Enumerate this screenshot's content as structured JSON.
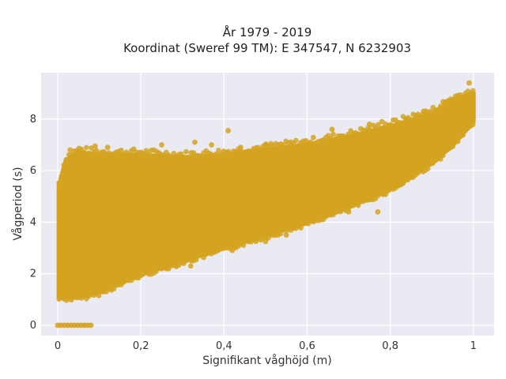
{
  "chart_data": {
    "type": "scatter",
    "title_lines": [
      "År 1979 - 2019",
      "Koordinat (Sweref 99 TM): E 347547, N 6232903"
    ],
    "xlabel": "Signifikant våghöjd (m)",
    "ylabel": "Vågperiod (s)",
    "xlim": [
      -0.04,
      1.05
    ],
    "ylim": [
      -0.4,
      9.8
    ],
    "x_ticks": [
      0,
      0.2,
      0.4,
      0.6,
      0.8,
      1.0
    ],
    "x_tick_labels": [
      "0",
      "0,2",
      "0,4",
      "0,6",
      "0,8",
      "1"
    ],
    "y_ticks": [
      0,
      2,
      4,
      6,
      8
    ],
    "y_tick_labels": [
      "0",
      "2",
      "4",
      "6",
      "8"
    ],
    "grid": true,
    "plot_background": "#eaeaf2",
    "marker_color": "#d4a320",
    "band": {
      "x": [
        0.003,
        0.02,
        0.05,
        0.1,
        0.2,
        0.3,
        0.4,
        0.5,
        0.6,
        0.7,
        0.8,
        0.9,
        0.95,
        1.0
      ],
      "lower": [
        1.1,
        1.1,
        1.1,
        1.3,
        2.0,
        2.5,
        3.0,
        3.5,
        4.0,
        4.6,
        5.3,
        6.3,
        7.0,
        7.9
      ],
      "upper": [
        5.4,
        6.4,
        6.7,
        6.6,
        6.6,
        6.5,
        6.6,
        6.8,
        7.0,
        7.3,
        7.7,
        8.2,
        8.7,
        9.0
      ]
    },
    "scattered_points": [
      {
        "x": 0.41,
        "y": 7.55
      },
      {
        "x": 0.33,
        "y": 7.1
      },
      {
        "x": 0.25,
        "y": 7.0
      },
      {
        "x": 0.09,
        "y": 6.95
      },
      {
        "x": 0.12,
        "y": 6.9
      },
      {
        "x": 0.37,
        "y": 7.0
      },
      {
        "x": 0.44,
        "y": 6.9
      },
      {
        "x": 0.66,
        "y": 7.6
      },
      {
        "x": 0.75,
        "y": 7.8
      },
      {
        "x": 0.78,
        "y": 7.9
      },
      {
        "x": 0.84,
        "y": 8.0
      },
      {
        "x": 0.88,
        "y": 8.3
      },
      {
        "x": 0.94,
        "y": 8.7
      },
      {
        "x": 0.99,
        "y": 9.4
      },
      {
        "x": 0.03,
        "y": 6.8
      },
      {
        "x": 0.02,
        "y": 4.4
      },
      {
        "x": 0.06,
        "y": 6.7
      },
      {
        "x": 0.5,
        "y": 7.0
      },
      {
        "x": 0.28,
        "y": 2.4
      },
      {
        "x": 0.2,
        "y": 1.95
      },
      {
        "x": 0.15,
        "y": 1.7
      },
      {
        "x": 0.5,
        "y": 3.25
      },
      {
        "x": 0.55,
        "y": 3.5
      },
      {
        "x": 0.6,
        "y": 4.2
      },
      {
        "x": 0.7,
        "y": 4.4
      },
      {
        "x": 0.77,
        "y": 4.4
      },
      {
        "x": 0.85,
        "y": 5.9
      },
      {
        "x": 0.83,
        "y": 5.5
      },
      {
        "x": 0.32,
        "y": 2.3
      },
      {
        "x": 0.42,
        "y": 2.9
      },
      {
        "x": 0.11,
        "y": 1.3
      }
    ],
    "zero_points_x": [
      0.0,
      0.008,
      0.016,
      0.024,
      0.032,
      0.04,
      0.048,
      0.056,
      0.064,
      0.072,
      0.08
    ]
  }
}
